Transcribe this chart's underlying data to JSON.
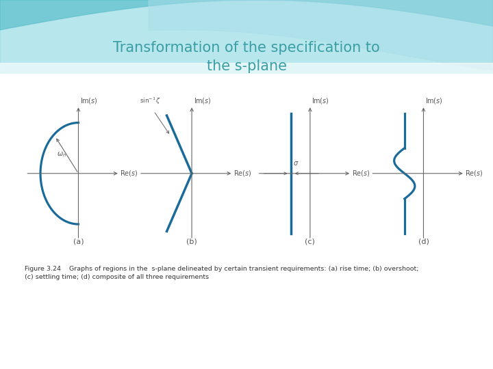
{
  "title_line1": "Transformation of the specification to",
  "title_line2": "the s-plane",
  "title_color": "#3A9EA5",
  "curve_color": "#1B6B9A",
  "axis_color": "#666666",
  "label_color": "#555555",
  "caption": "Figure 3.24    Graphs of regions in the  s-plane delineated by certain transient requirements: (a) rise time; (b) overshoot;\n(c) settling time; (d) composite of all three requirements",
  "sub_labels": [
    "(a)",
    "(b)",
    "(c)",
    "(d)"
  ],
  "fig_width": 7.2,
  "fig_height": 5.4,
  "teal_light": "#7DD4DF",
  "teal_mid": "#5BBFCC",
  "white": "#FFFFFF"
}
